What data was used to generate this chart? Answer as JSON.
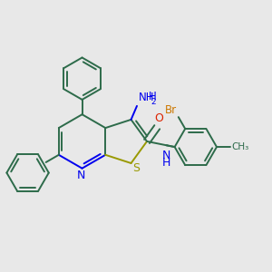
{
  "background_color": "#e8e8e8",
  "bond_color": "#2d6b4a",
  "n_color": "#0000ee",
  "s_color": "#999900",
  "o_color": "#dd2200",
  "br_color": "#cc7700",
  "line_width": 1.4,
  "font_size": 8.5,
  "nh2_text": "NH",
  "nh2_sub": "2",
  "n_label": "N",
  "s_label": "S",
  "o_label": "O",
  "br_label": "Br",
  "nh_label": "N",
  "h_label": "H",
  "ch3_label": "CH₃"
}
